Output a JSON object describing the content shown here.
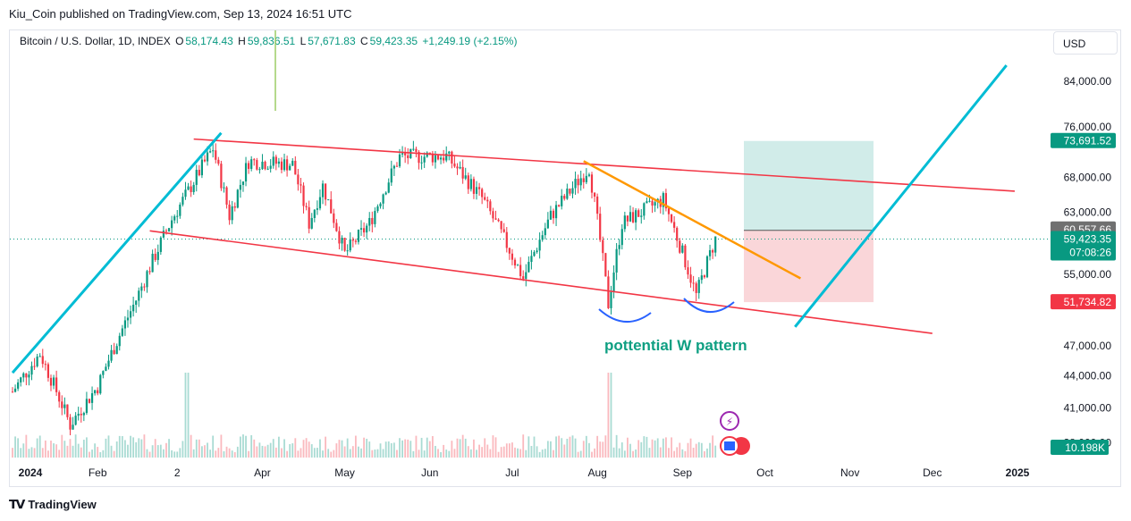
{
  "header": {
    "published_by": "Kiu_Coin published on TradingView.com, Sep 13, 2024 16:51 UTC"
  },
  "symbol": {
    "name": "Bitcoin / U.S. Dollar, 1D, INDEX",
    "open_label": "O",
    "open": "58,174.43",
    "high_label": "H",
    "high": "59,836.51",
    "low_label": "L",
    "low": "57,671.83",
    "close_label": "C",
    "close": "59,423.35",
    "change": "+1,249.19 (+2.15%)"
  },
  "currency_button": "USD",
  "annotation": "pottential W pattern",
  "footer": {
    "brand": "TradingView"
  },
  "colors": {
    "up": "#089981",
    "down": "#f23645",
    "channel": "#f23645",
    "trendline": "#00bcd4",
    "orange_line": "#ff9800",
    "arc": "#2962ff",
    "target_zone": "#b2dfdb",
    "stop_zone": "#f8c8cc"
  },
  "price_badges": {
    "target": "73,691.52",
    "entry": "60,557.66",
    "current": "59,423.35",
    "countdown": "07:08:26",
    "stop": "51,734.82",
    "volume": "10.198K"
  },
  "chart_data": {
    "type": "candlestick",
    "title": "Bitcoin / U.S. Dollar, 1D, INDEX",
    "y_scale": "log",
    "y_ticks": [
      "84,000.00",
      "76,000.00",
      "68,000.00",
      "63,000.00",
      "55,000.00",
      "47,000.00",
      "44,000.00",
      "41,000.00",
      "38,000.00"
    ],
    "y_tick_values": [
      84000,
      76000,
      68000,
      63000,
      55000,
      47000,
      44000,
      41000,
      38000
    ],
    "x_ticks": [
      "2024",
      "Feb",
      "2",
      "Apr",
      "May",
      "Jun",
      "Jul",
      "Aug",
      "Sep",
      "Oct",
      "Nov",
      "Dec",
      "2025"
    ],
    "x_tick_dates": [
      "2024-01-01",
      "2024-02-01",
      "2024-03-01",
      "2024-04-01",
      "2024-05-01",
      "2024-06-01",
      "2024-07-01",
      "2024-08-01",
      "2024-09-01",
      "2024-10-01",
      "2024-11-01",
      "2024-12-01",
      "2025-01-01"
    ],
    "price_path": [
      [
        "2024-01-01",
        42500
      ],
      [
        "2024-01-11",
        46200
      ],
      [
        "2024-01-22",
        39500
      ],
      [
        "2024-02-01",
        43000
      ],
      [
        "2024-02-15",
        52000
      ],
      [
        "2024-02-28",
        62000
      ],
      [
        "2024-03-05",
        66000
      ],
      [
        "2024-03-14",
        72500
      ],
      [
        "2024-03-20",
        62500
      ],
      [
        "2024-03-27",
        70500
      ],
      [
        "2024-04-12",
        70000
      ],
      [
        "2024-04-18",
        61500
      ],
      [
        "2024-04-23",
        66800
      ],
      [
        "2024-05-01",
        57500
      ],
      [
        "2024-05-10",
        61500
      ],
      [
        "2024-05-21",
        71200
      ],
      [
        "2024-06-07",
        71300
      ],
      [
        "2024-06-20",
        65000
      ],
      [
        "2024-07-05",
        54500
      ],
      [
        "2024-07-15",
        62500
      ],
      [
        "2024-07-29",
        69500
      ],
      [
        "2024-08-05",
        51500
      ],
      [
        "2024-08-10",
        61500
      ],
      [
        "2024-08-25",
        64800
      ],
      [
        "2024-09-06",
        52500
      ],
      [
        "2024-09-13",
        59423
      ]
    ],
    "levels": {
      "target": 73691.52,
      "entry": 60557.66,
      "current": 59423.35,
      "stop": 51734.82
    },
    "drawings": {
      "channel_upper": [
        [
          "2024-03-07",
          74000
        ],
        [
          "2024-12-31",
          66000
        ]
      ],
      "channel_lower": [
        [
          "2024-02-20",
          60500
        ],
        [
          "2024-12-01",
          48300
        ]
      ],
      "trend_left": [
        [
          "2024-01-01",
          44300
        ],
        [
          "2024-03-17",
          75000
        ]
      ],
      "trend_right": [
        [
          "2024-10-12",
          49000
        ],
        [
          "2024-12-28",
          87000
        ]
      ],
      "orange": [
        [
          "2024-07-27",
          70500
        ],
        [
          "2024-10-14",
          54500
        ]
      ]
    },
    "volume_spikes": [
      "2024-03-05",
      "2024-08-05"
    ]
  }
}
